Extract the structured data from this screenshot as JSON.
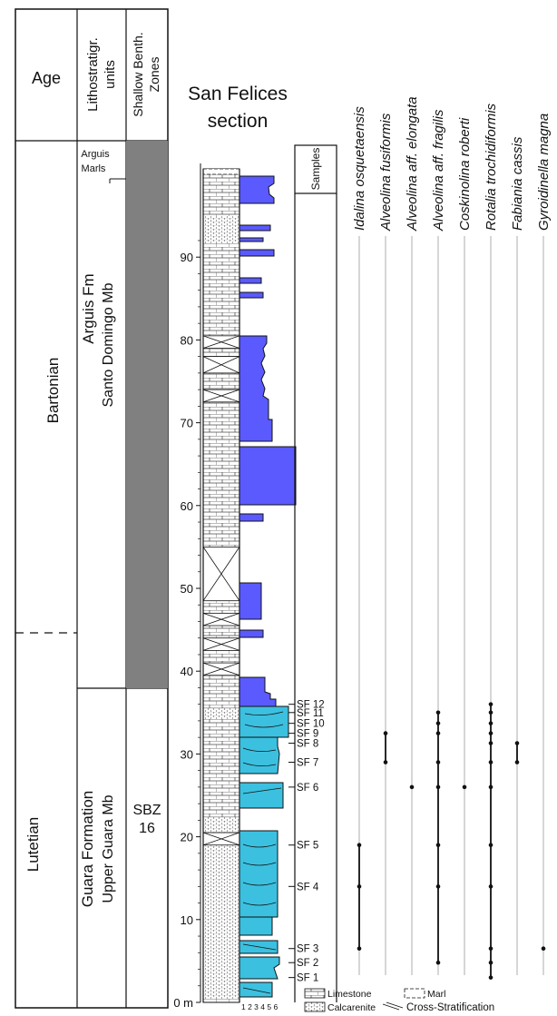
{
  "header": {
    "age": "Age",
    "litho_line1": "Lithostratigr.",
    "litho_line2": "units",
    "sbz_line1": "Shallow Benth.",
    "sbz_line2": "Zones",
    "section_line1": "San Felices",
    "section_line2": "section",
    "samples": "Samples"
  },
  "stages": {
    "bartonian": "Bartonian",
    "lutetian": "Lutetian"
  },
  "units": {
    "arguis_marls_line1": "Arguis",
    "arguis_marls_line2": "Marls",
    "arguis_fm": "Arguis Fm",
    "santo_domingo": "Santo Domingo Mb",
    "guara_fm": "Guara Formation",
    "upper_guara": "Upper Guara Mb"
  },
  "zones": {
    "sbz_line1": "SBZ",
    "sbz_line2": "16"
  },
  "depth_axis": {
    "ticks": [
      "0 m",
      "10",
      "20",
      "30",
      "40",
      "50",
      "60",
      "70",
      "80",
      "90"
    ],
    "grain_scale": "1 2 3 4  5 6"
  },
  "samples": [
    {
      "label": "SF 1",
      "depth_m": 3.0
    },
    {
      "label": "SF 2",
      "depth_m": 4.8
    },
    {
      "label": "SF 3",
      "depth_m": 6.5
    },
    {
      "label": "SF 4",
      "depth_m": 14.0
    },
    {
      "label": "SF 5",
      "depth_m": 19.0
    },
    {
      "label": "SF 6",
      "depth_m": 26.0
    },
    {
      "label": "SF 7",
      "depth_m": 29.0
    },
    {
      "label": "SF 8",
      "depth_m": 31.3
    },
    {
      "label": "SF 9",
      "depth_m": 32.5
    },
    {
      "label": "SF 10",
      "depth_m": 33.7
    },
    {
      "label": "SF 11",
      "depth_m": 35.0
    },
    {
      "label": "SF 12",
      "depth_m": 36.0
    }
  ],
  "taxa": [
    {
      "name": "Idalina osquetaensis",
      "occurrences": [
        6.5,
        14.0,
        19.0
      ]
    },
    {
      "name": "Alveolina fusiformis",
      "occurrences": [
        29.0,
        32.5
      ]
    },
    {
      "name": "Alveolina aff. elongata",
      "occurrences": [
        26.0
      ]
    },
    {
      "name": "Alveolina aff. fragilis",
      "occurrences": [
        4.8,
        14.0,
        19.0,
        26.0,
        29.0,
        32.5,
        33.7,
        35.0
      ]
    },
    {
      "name": "Coskinolina roberti",
      "occurrences": [
        26.0
      ]
    },
    {
      "name": "Rotalia trochidiformis",
      "occurrences": [
        3.0,
        4.8,
        6.5,
        14.0,
        19.0,
        26.0,
        29.0,
        31.3,
        32.5,
        33.7,
        35.0,
        36.0
      ]
    },
    {
      "name": "Fabiania cassis",
      "occurrences": [
        29.0,
        31.3
      ]
    },
    {
      "name": "Gyroidinella magna",
      "occurrences": [
        6.5
      ]
    }
  ],
  "legend": {
    "limestone": "Limestone",
    "marl": "Marl",
    "calcarenite": "Calcarenite",
    "cross_stratification": "Cross-Stratification"
  },
  "colors": {
    "blue_unit": "#5a5aff",
    "cyan_unit": "#3cc0e0",
    "sbz_fill": "#808080"
  }
}
